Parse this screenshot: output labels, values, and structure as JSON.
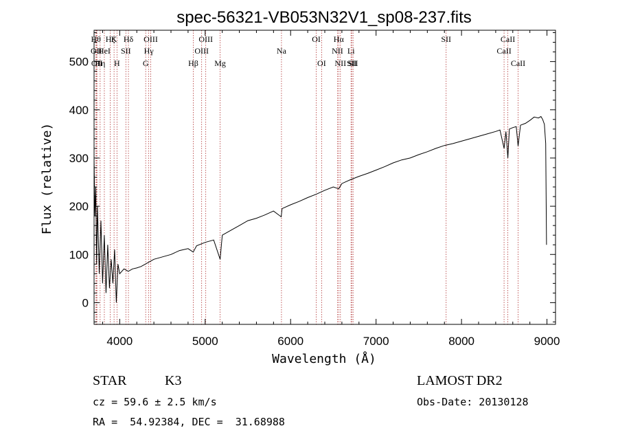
{
  "chart_data": {
    "type": "line",
    "title": "spec-56321-VB053N32V1_sp08-237.fits",
    "xlabel": "Wavelength (Å)",
    "ylabel": "Flux (relative)",
    "xlim": [
      3700,
      9100
    ],
    "ylim": [
      -45,
      565
    ],
    "xticks": [
      4000,
      5000,
      6000,
      7000,
      8000,
      9000
    ],
    "xtick_labels": [
      "4000",
      "5000",
      "6000",
      "7000",
      "8000",
      "9000"
    ],
    "yticks": [
      0,
      100,
      200,
      300,
      400,
      500
    ],
    "ytick_labels": [
      "0",
      "100",
      "200",
      "300",
      "400",
      "500"
    ],
    "grid": false,
    "series": [
      {
        "x": [
          3700,
          3710,
          3720,
          3730,
          3740,
          3760,
          3780,
          3800,
          3820,
          3840,
          3860,
          3880,
          3900,
          3920,
          3940,
          3960,
          3980,
          4000,
          4050,
          4100,
          4150,
          4200,
          4250,
          4300,
          4350,
          4400,
          4500,
          4600,
          4700,
          4800,
          4860,
          4900,
          5000,
          5100,
          5175,
          5200,
          5300,
          5400,
          5500,
          5600,
          5700,
          5800,
          5890,
          5900,
          6000,
          6100,
          6200,
          6300,
          6400,
          6500,
          6563,
          6600,
          6700,
          6800,
          6900,
          7000,
          7100,
          7200,
          7300,
          7400,
          7500,
          7600,
          7700,
          7800,
          7900,
          8000,
          8100,
          8200,
          8300,
          8400,
          8450,
          8498,
          8520,
          8542,
          8560,
          8600,
          8640,
          8662,
          8690,
          8750,
          8800,
          8850,
          8900,
          8930,
          8950,
          8970,
          8985,
          8995
        ],
        "y": [
          300,
          180,
          240,
          80,
          200,
          60,
          170,
          40,
          140,
          20,
          120,
          30,
          90,
          40,
          110,
          0,
          80,
          60,
          70,
          65,
          70,
          72,
          75,
          80,
          85,
          90,
          95,
          100,
          108,
          112,
          105,
          118,
          125,
          130,
          90,
          140,
          150,
          160,
          170,
          175,
          182,
          190,
          178,
          195,
          203,
          210,
          218,
          225,
          233,
          240,
          236,
          247,
          255,
          262,
          268,
          275,
          282,
          290,
          296,
          300,
          307,
          313,
          320,
          326,
          330,
          335,
          340,
          345,
          350,
          355,
          358,
          320,
          355,
          300,
          360,
          363,
          365,
          325,
          368,
          372,
          378,
          385,
          383,
          386,
          380,
          370,
          330,
          120
        ]
      }
    ],
    "line_labels": [
      {
        "x": 3722,
        "label": "Hθ",
        "row": 0
      },
      {
        "x": 3727,
        "label": "OII",
        "row": 1
      },
      {
        "x": 3734,
        "label": "OII",
        "row": 2
      },
      {
        "x": 3771,
        "label": "Hη",
        "row": 2
      },
      {
        "x": 3820,
        "label": "HeI",
        "row": 1
      },
      {
        "x": 3889,
        "label": "Hζ",
        "row": 0
      },
      {
        "x": 3934,
        "label": "K",
        "row": 0
      },
      {
        "x": 3968,
        "label": "H",
        "row": 2
      },
      {
        "x": 4072,
        "label": "SII",
        "row": 1
      },
      {
        "x": 4102,
        "label": "Hδ",
        "row": 0
      },
      {
        "x": 4304,
        "label": "G",
        "row": 2
      },
      {
        "x": 4340,
        "label": "Hγ",
        "row": 1
      },
      {
        "x": 4363,
        "label": "OIII",
        "row": 0
      },
      {
        "x": 4861,
        "label": "Hβ",
        "row": 2
      },
      {
        "x": 4959,
        "label": "OIII",
        "row": 1
      },
      {
        "x": 5007,
        "label": "OIII",
        "row": 0
      },
      {
        "x": 5175,
        "label": "Mg",
        "row": 2
      },
      {
        "x": 5893,
        "label": "Na",
        "row": 1
      },
      {
        "x": 6300,
        "label": "OI",
        "row": 0
      },
      {
        "x": 6363,
        "label": "OI",
        "row": 2
      },
      {
        "x": 6548,
        "label": "NII",
        "row": 1
      },
      {
        "x": 6563,
        "label": "Hα",
        "row": 0
      },
      {
        "x": 6583,
        "label": "NII",
        "row": 2
      },
      {
        "x": 6707,
        "label": "Li",
        "row": 1
      },
      {
        "x": 6716,
        "label": "SII",
        "row": 2
      },
      {
        "x": 6731,
        "label": "SII",
        "row": 2
      },
      {
        "x": 7820,
        "label": "SII",
        "row": 0
      },
      {
        "x": 8498,
        "label": "CaII",
        "row": 1
      },
      {
        "x": 8542,
        "label": "CaII",
        "row": 0
      },
      {
        "x": 8662,
        "label": "CaII",
        "row": 2
      }
    ]
  },
  "info": {
    "object_class": "STAR",
    "subclass": "K3",
    "survey": "LAMOST DR2",
    "cz": "cz = 59.6 ± 2.5 km/s",
    "obs_date": "Obs-Date: 20130128",
    "coords": "RA =  54.92384, DEC =  31.68988"
  }
}
